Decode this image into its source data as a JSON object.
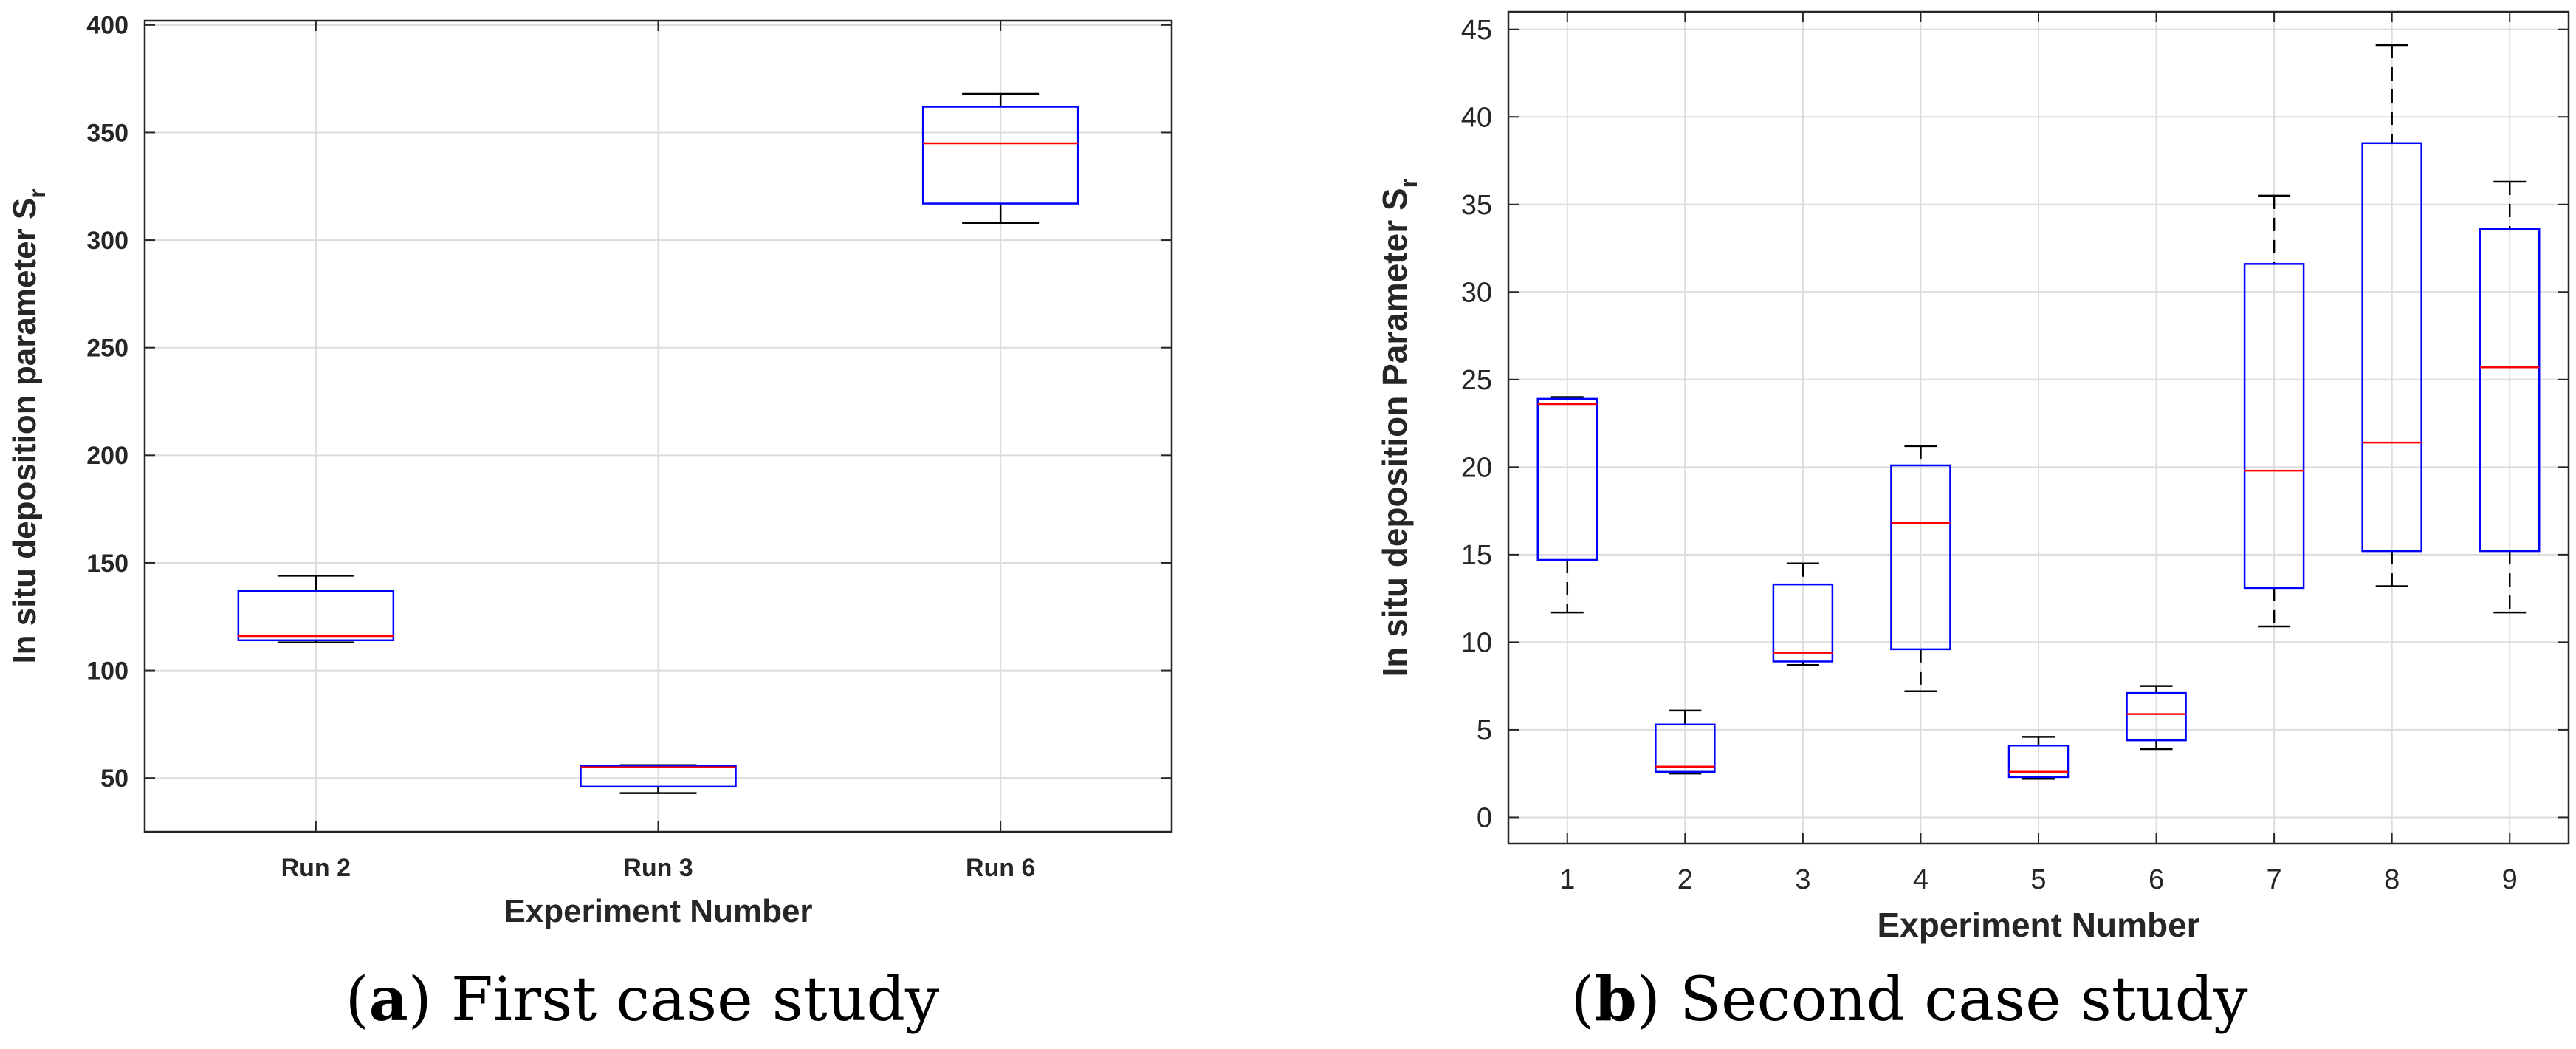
{
  "chart_data": [
    {
      "type": "boxplot",
      "panel": "a",
      "xlabel": "Experiment Number",
      "ylabel": "In situ deposition parameter S",
      "ylabel_subscript": "r",
      "ylim": [
        25,
        402
      ],
      "yticks": [
        50,
        100,
        150,
        200,
        250,
        300,
        350,
        400
      ],
      "categories": [
        "Run 2",
        "Run 3",
        "Run 6"
      ],
      "boxes": [
        {
          "category": "Run 2",
          "whisker_low": 113,
          "q1": 114,
          "median": 116,
          "q3": 137,
          "whisker_high": 144
        },
        {
          "category": "Run 3",
          "whisker_low": 43,
          "q1": 46,
          "median": 55,
          "q3": 55.5,
          "whisker_high": 56
        },
        {
          "category": "Run 6",
          "whisker_low": 308,
          "q1": 317,
          "median": 345,
          "q3": 362,
          "whisker_high": 368
        }
      ],
      "grid": true,
      "caption_letter": "a",
      "caption_text": "First case study"
    },
    {
      "type": "boxplot",
      "panel": "b",
      "xlabel": "Experiment Number",
      "ylabel": "In situ deposition Parameter S",
      "ylabel_subscript": "r",
      "ylim": [
        -1.5,
        46
      ],
      "yticks": [
        0,
        5,
        10,
        15,
        20,
        25,
        30,
        35,
        40,
        45
      ],
      "categories": [
        "1",
        "2",
        "3",
        "4",
        "5",
        "6",
        "7",
        "8",
        "9"
      ],
      "boxes": [
        {
          "category": "1",
          "whisker_low": 11.7,
          "q1": 14.7,
          "median": 23.6,
          "q3": 23.9,
          "whisker_high": 24.0
        },
        {
          "category": "2",
          "whisker_low": 2.5,
          "q1": 2.6,
          "median": 2.9,
          "q3": 5.3,
          "whisker_high": 6.1
        },
        {
          "category": "3",
          "whisker_low": 8.7,
          "q1": 8.9,
          "median": 9.4,
          "q3": 13.3,
          "whisker_high": 14.5
        },
        {
          "category": "4",
          "whisker_low": 7.2,
          "q1": 9.6,
          "median": 16.8,
          "q3": 20.1,
          "whisker_high": 21.2
        },
        {
          "category": "5",
          "whisker_low": 2.2,
          "q1": 2.3,
          "median": 2.6,
          "q3": 4.1,
          "whisker_high": 4.6
        },
        {
          "category": "6",
          "whisker_low": 3.9,
          "q1": 4.4,
          "median": 5.9,
          "q3": 7.1,
          "whisker_high": 7.5
        },
        {
          "category": "7",
          "whisker_low": 10.9,
          "q1": 13.1,
          "median": 19.8,
          "q3": 31.6,
          "whisker_high": 35.5
        },
        {
          "category": "8",
          "whisker_low": 13.2,
          "q1": 15.2,
          "median": 21.4,
          "q3": 38.5,
          "whisker_high": 44.1
        },
        {
          "category": "9",
          "whisker_low": 11.7,
          "q1": 15.2,
          "median": 25.7,
          "q3": 33.6,
          "whisker_high": 36.3
        }
      ],
      "grid": true,
      "caption_letter": "b",
      "caption_text": "Second case study"
    }
  ],
  "colors": {
    "box": "#0000ff",
    "median": "#ff0000",
    "whisker": "#000000",
    "grid": "#dcdcdc",
    "axis": "#262626",
    "text": "#262626"
  }
}
